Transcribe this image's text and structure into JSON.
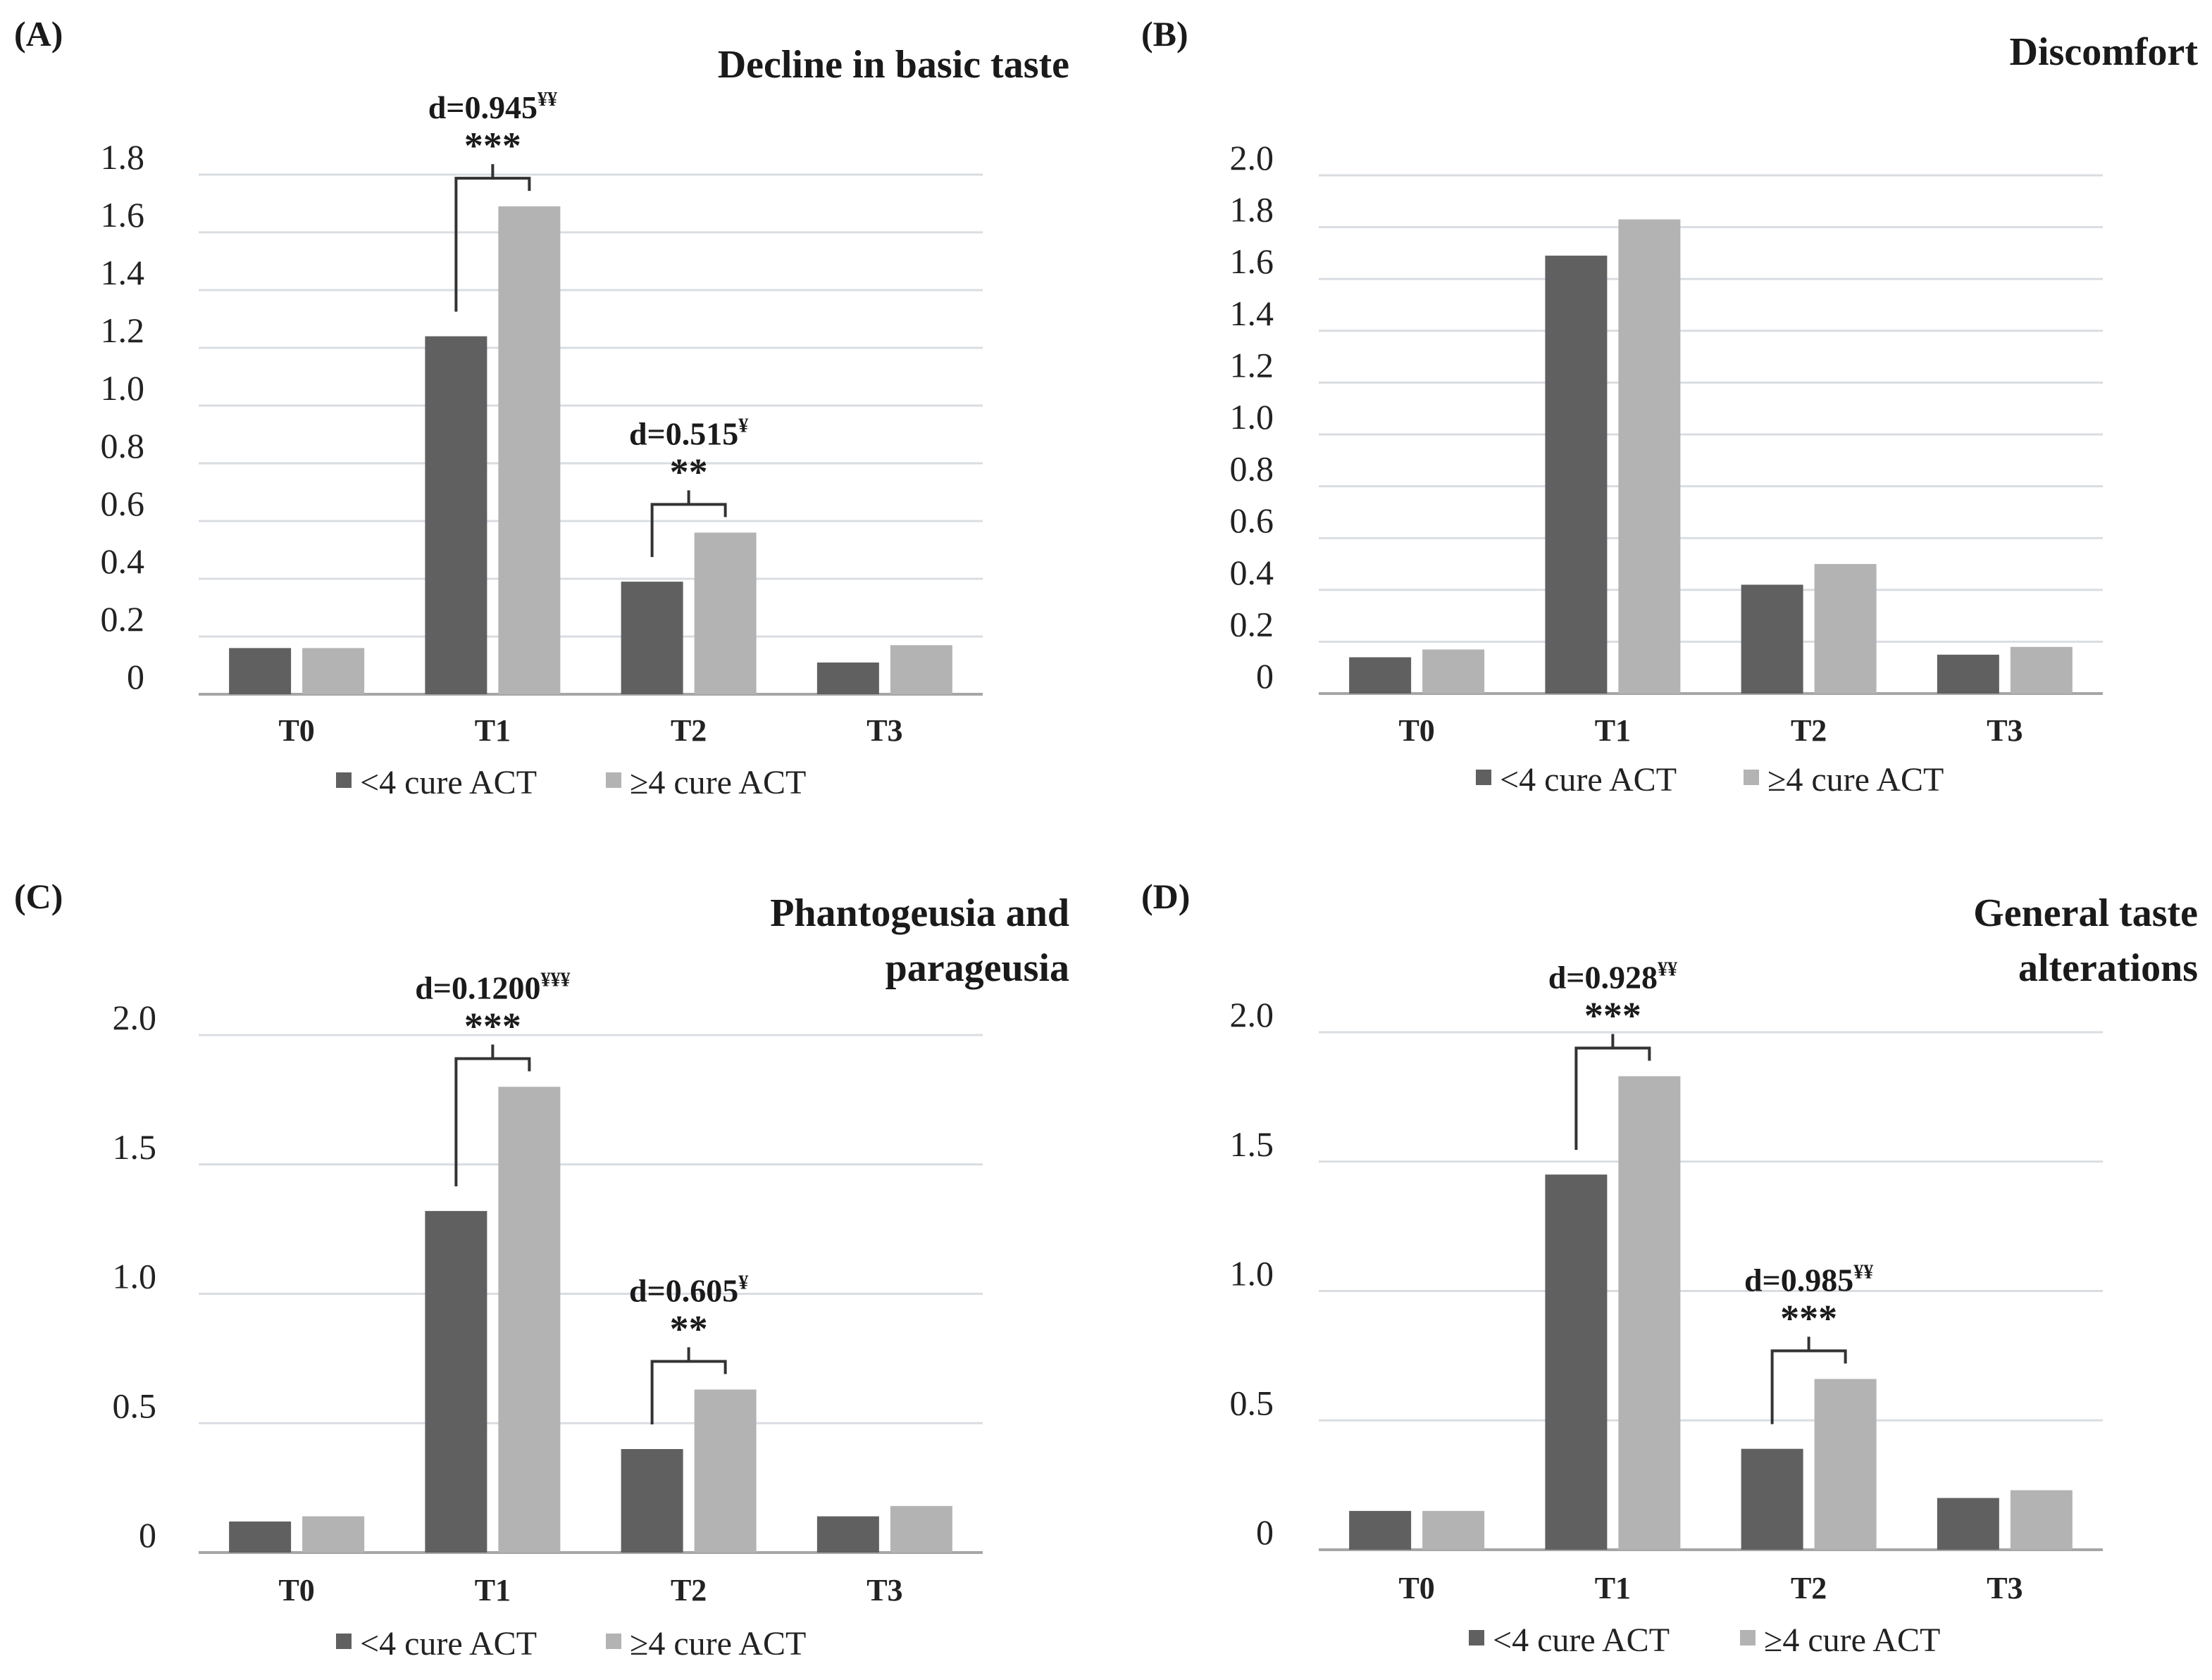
{
  "colors": {
    "series_dark": "#606060",
    "series_light": "#b3b3b3"
  },
  "chart_data": [
    {
      "type": "bar",
      "panel": "(A)",
      "title": "Decline in basic taste",
      "title_lines": [
        "Decline in basic taste"
      ],
      "categories": [
        "T0",
        "T1",
        "T2",
        "T3"
      ],
      "series": [
        {
          "name": "<4 cure ACT",
          "values": [
            0.16,
            1.24,
            0.39,
            0.11
          ]
        },
        {
          "name": "≥4 cure ACT",
          "values": [
            0.16,
            1.69,
            0.56,
            0.17
          ]
        }
      ],
      "ylim": [
        0,
        1.8
      ],
      "yticks": [
        "0",
        "0.2",
        "0.4",
        "0.6",
        "0.8",
        "1.0",
        "1.2",
        "1.4",
        "1.6",
        "1.8"
      ],
      "legend": "bottom",
      "annotations": [
        {
          "category": "T1",
          "effect": "d=0.945",
          "sup": "¥¥",
          "stars": "***"
        },
        {
          "category": "T2",
          "effect": "d=0.515",
          "sup": "¥",
          "stars": "**"
        }
      ]
    },
    {
      "type": "bar",
      "panel": "(B)",
      "title": "Discomfort",
      "title_lines": [
        "Discomfort"
      ],
      "categories": [
        "T0",
        "T1",
        "T2",
        "T3"
      ],
      "series": [
        {
          "name": "<4 cure ACT",
          "values": [
            0.14,
            1.69,
            0.42,
            0.15
          ]
        },
        {
          "name": "≥4 cure ACT",
          "values": [
            0.17,
            1.83,
            0.5,
            0.18
          ]
        }
      ],
      "ylim": [
        0,
        2.0
      ],
      "yticks": [
        "0",
        "0.2",
        "0.4",
        "0.6",
        "0.8",
        "1.0",
        "1.2",
        "1.4",
        "1.6",
        "1.8",
        "2.0"
      ],
      "legend": "bottom",
      "annotations": []
    },
    {
      "type": "bar",
      "panel": "(C)",
      "title": "Phantogeusia and parageusia",
      "title_lines": [
        "Phantogeusia and",
        "parageusia"
      ],
      "categories": [
        "T0",
        "T1",
        "T2",
        "T3"
      ],
      "series": [
        {
          "name": "<4 cure ACT",
          "values": [
            0.12,
            1.32,
            0.4,
            0.14
          ]
        },
        {
          "name": "≥4 cure ACT",
          "values": [
            0.14,
            1.8,
            0.63,
            0.18
          ]
        }
      ],
      "ylim": [
        0,
        2.0
      ],
      "yticks": [
        "0",
        "0.5",
        "1.0",
        "1.5",
        "2.0"
      ],
      "legend": "bottom",
      "annotations": [
        {
          "category": "T1",
          "effect": "d=0.1200",
          "sup": "¥¥¥",
          "stars": "***"
        },
        {
          "category": "T2",
          "effect": "d=0.605",
          "sup": "¥",
          "stars": "**"
        }
      ]
    },
    {
      "type": "bar",
      "panel": "(D)",
      "title": "General taste alterations",
      "title_lines": [
        "General taste",
        "alterations"
      ],
      "categories": [
        "T0",
        "T1",
        "T2",
        "T3"
      ],
      "series": [
        {
          "name": "<4 cure ACT",
          "values": [
            0.15,
            1.45,
            0.39,
            0.2
          ]
        },
        {
          "name": "≥4 cure ACT",
          "values": [
            0.15,
            1.83,
            0.66,
            0.23
          ]
        }
      ],
      "ylim": [
        0,
        2.0
      ],
      "yticks": [
        "0",
        "0.5",
        "1.0",
        "1.5",
        "2.0"
      ],
      "legend": "bottom",
      "annotations": [
        {
          "category": "T1",
          "effect": "d=0.928",
          "sup": "¥¥",
          "stars": "***"
        },
        {
          "category": "T2",
          "effect": "d=0.985",
          "sup": "¥¥",
          "stars": "***"
        }
      ]
    }
  ]
}
